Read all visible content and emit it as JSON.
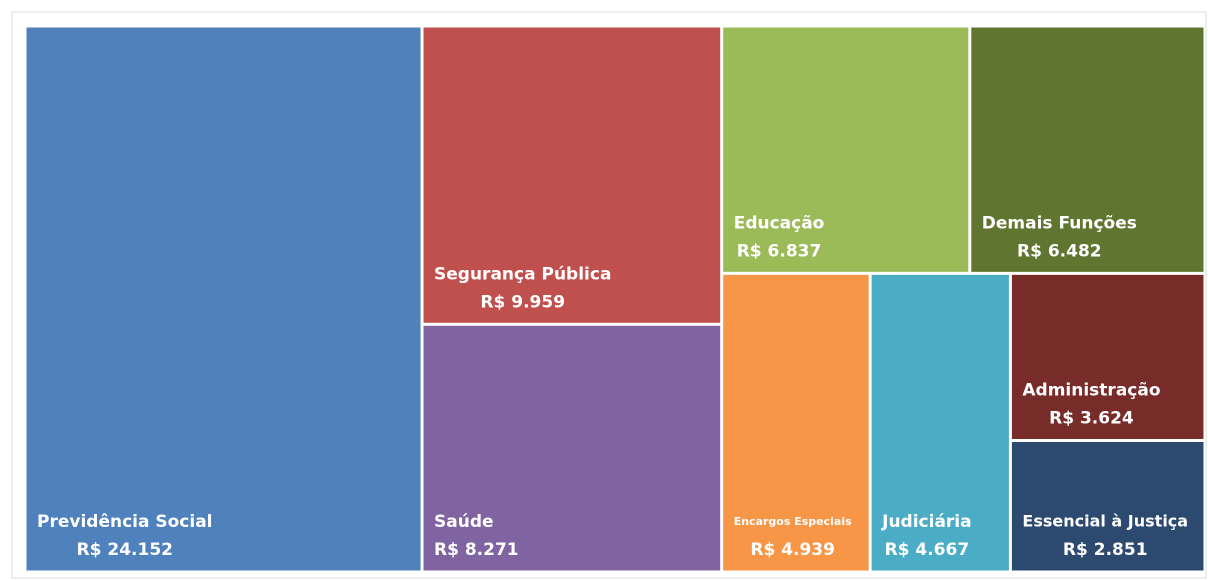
{
  "chart_data": {
    "type": "treemap",
    "categories": [
      "Previdência Social",
      "Segurança Pública",
      "Saúde",
      "Educação",
      "Demais Funções",
      "Encargos Especiais",
      "Judiciária",
      "Administração",
      "Essencial à Justiça"
    ],
    "values": [
      24152,
      9959,
      8271,
      6837,
      6482,
      4939,
      4667,
      3624,
      2851
    ],
    "value_labels": [
      "R$ 24.152",
      "R$ 9.959",
      "R$ 8.271",
      "R$ 6.837",
      "R$ 6.482",
      "R$ 4.939",
      "R$ 4.667",
      "R$ 3.624",
      "R$ 2.851"
    ],
    "colors": [
      "#4f81bd",
      "#c0504d",
      "#8064a2",
      "#9bbb59",
      "#607530",
      "#f79646",
      "#4bacc6",
      "#772c2a",
      "#2c4a70"
    ]
  }
}
